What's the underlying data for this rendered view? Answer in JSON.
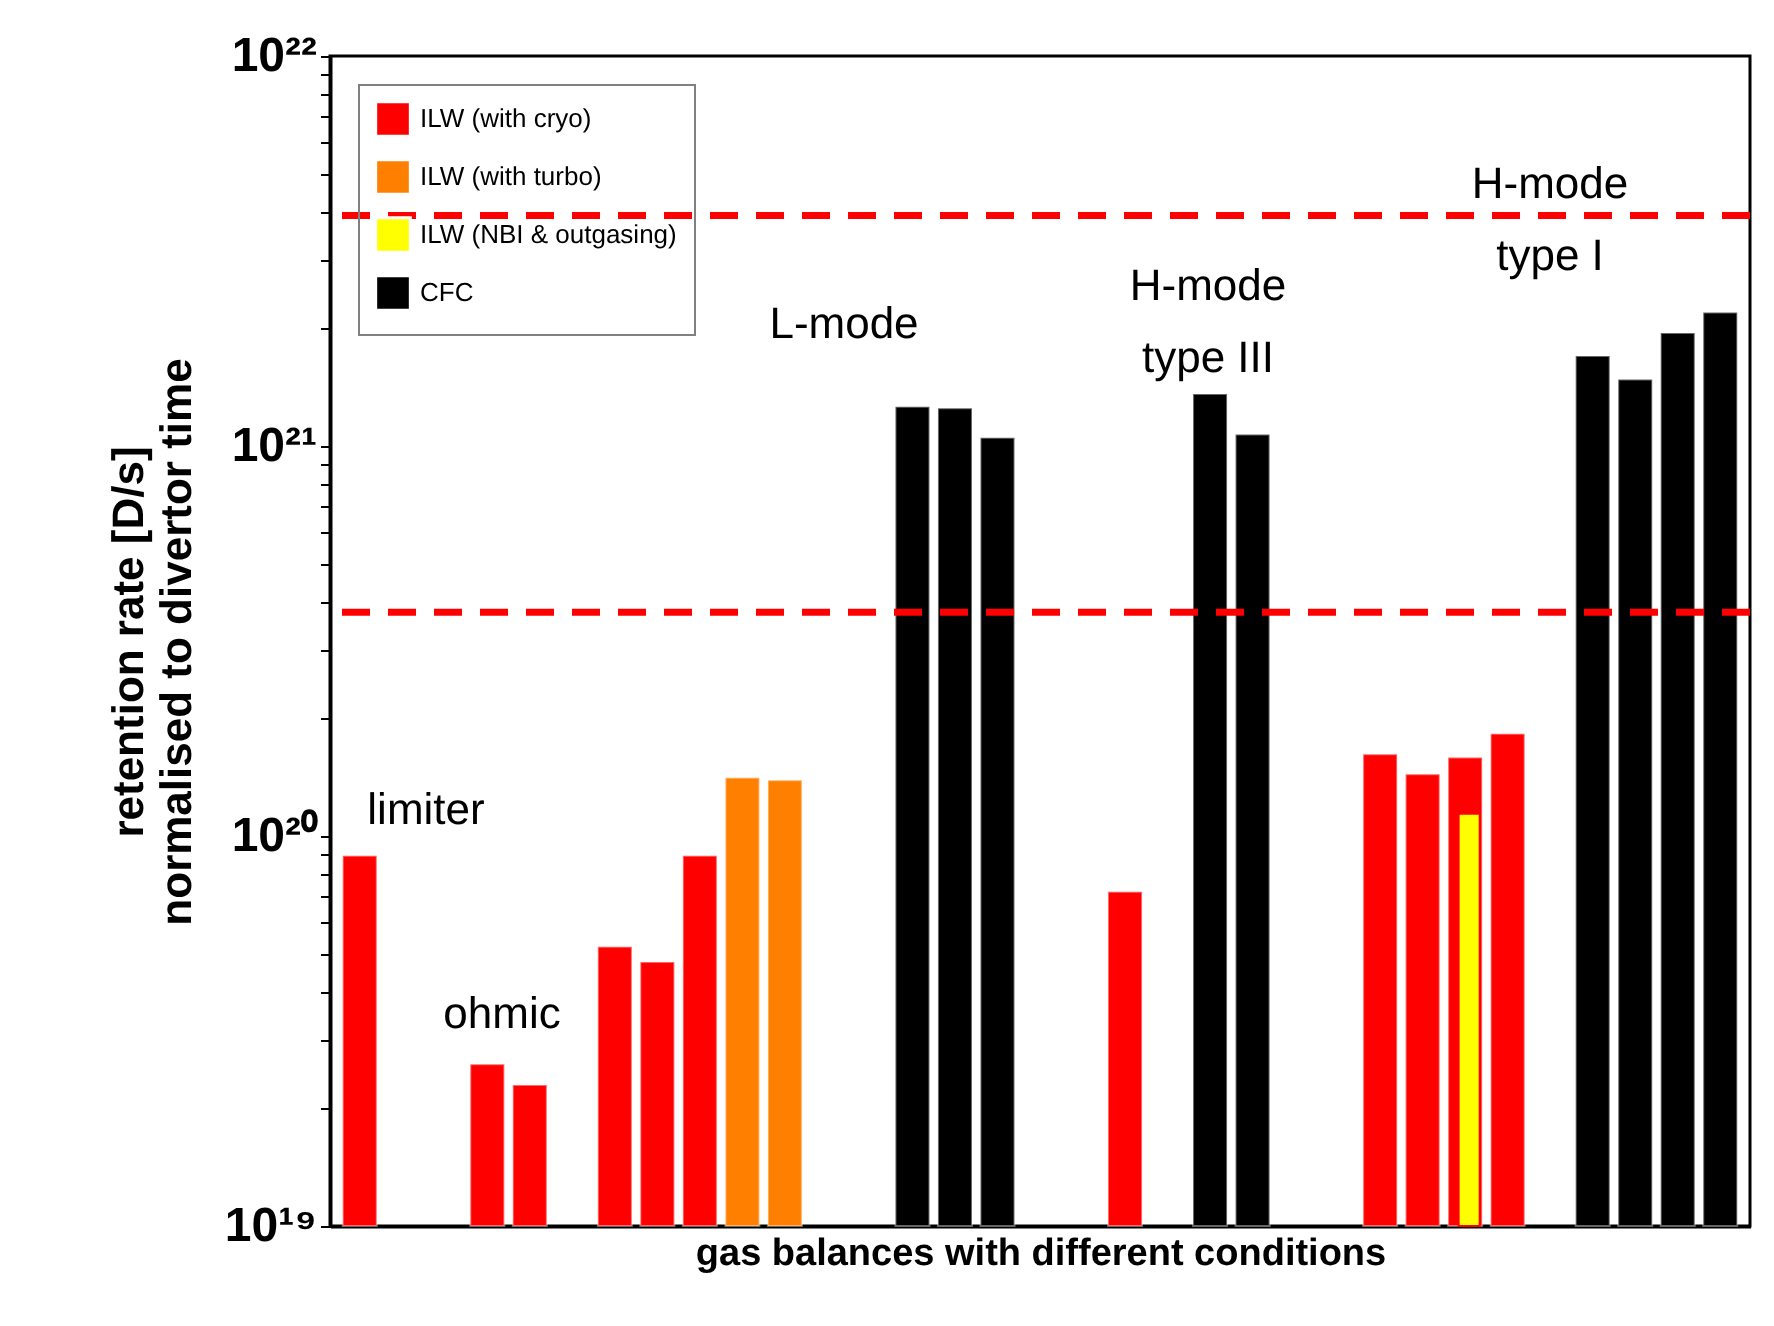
{
  "chart_data": {
    "type": "bar",
    "xlabel": "gas balances with different conditions",
    "ylabel": "retention rate [D/s]\nnormalised to divertor time",
    "categories": [
      null,
      null,
      null,
      null,
      null,
      null,
      null,
      null,
      null,
      null,
      null,
      null,
      null,
      null,
      null,
      null,
      null,
      null,
      null,
      null,
      null,
      null,
      null,
      null,
      null,
      null,
      null,
      null,
      null,
      null,
      null,
      null,
      null
    ],
    "series": [
      {
        "name": "ILW (with cryo)",
        "color": "#ff0000",
        "values": [
          8.9e+19,
          null,
          null,
          2.6e+19,
          2.3e+19,
          null,
          5.2e+19,
          4.75e+19,
          8.9e+19,
          null,
          null,
          null,
          null,
          null,
          null,
          null,
          null,
          null,
          7.2e+19,
          null,
          null,
          null,
          null,
          null,
          1.62e+20,
          1.44e+20,
          1.59e+20,
          1.83e+20,
          null,
          null,
          null,
          null,
          null
        ]
      },
      {
        "name": "ILW (with turbo)",
        "color": "#ff8000",
        "values": [
          null,
          null,
          null,
          null,
          null,
          null,
          null,
          null,
          null,
          1.41e+20,
          1.39e+20,
          null,
          null,
          null,
          null,
          null,
          null,
          null,
          null,
          null,
          null,
          null,
          null,
          null,
          null,
          null,
          null,
          null,
          null,
          null,
          null,
          null,
          null
        ]
      },
      {
        "name": "ILW (NBI & outgasing)",
        "color": "#ffff00",
        "values": [
          null,
          null,
          null,
          null,
          null,
          null,
          null,
          null,
          null,
          null,
          null,
          null,
          null,
          null,
          null,
          null,
          null,
          null,
          null,
          null,
          null,
          null,
          null,
          null,
          null,
          null,
          1.14e+20,
          null,
          null,
          null,
          null,
          null,
          null
        ]
      },
      {
        "name": "CFC",
        "color": "#000000",
        "values": [
          null,
          null,
          null,
          null,
          null,
          null,
          null,
          null,
          null,
          null,
          null,
          null,
          null,
          1.26e+21,
          1.25e+21,
          1.05e+21,
          null,
          null,
          null,
          null,
          1.36e+21,
          1.07e+21,
          null,
          null,
          null,
          null,
          null,
          null,
          null,
          1.7e+21,
          1.48e+21,
          1.95e+21,
          2.2e+21
        ]
      }
    ],
    "log": true,
    "ylim": [
      1e+19,
      1e+22
    ],
    "yticks": [
      {
        "value": 1e+19,
        "label": "10¹⁹"
      },
      {
        "value": 2e+19,
        "label": null
      },
      {
        "value": 3e+19,
        "label": null
      },
      {
        "value": 4e+19,
        "label": null
      },
      {
        "value": 5e+19,
        "label": null
      },
      {
        "value": 6e+19,
        "label": null
      },
      {
        "value": 7e+19,
        "label": null
      },
      {
        "value": 8e+19,
        "label": null
      },
      {
        "value": 9e+19,
        "label": null
      },
      {
        "value": 1e+20,
        "label": "10²⁰"
      },
      {
        "value": 2e+20,
        "label": null
      },
      {
        "value": 3e+20,
        "label": null
      },
      {
        "value": 4e+20,
        "label": null
      },
      {
        "value": 5e+20,
        "label": null
      },
      {
        "value": 6e+20,
        "label": null
      },
      {
        "value": 7e+20,
        "label": null
      },
      {
        "value": 8e+20,
        "label": null
      },
      {
        "value": 9e+20,
        "label": null
      },
      {
        "value": 1e+21,
        "label": "10²¹"
      },
      {
        "value": 2e+21,
        "label": null
      },
      {
        "value": 3e+21,
        "label": null
      },
      {
        "value": 4e+21,
        "label": null
      },
      {
        "value": 5e+21,
        "label": null
      },
      {
        "value": 6e+21,
        "label": null
      },
      {
        "value": 7e+21,
        "label": null
      },
      {
        "value": 8e+21,
        "label": null
      },
      {
        "value": 9e+21,
        "label": null
      },
      {
        "value": 1e+22,
        "label": "10²²"
      }
    ],
    "ref_lines": [
      {
        "axis": "y",
        "value": 3.9e+21,
        "color": "#ff0000",
        "line_style": "dashed"
      },
      {
        "axis": "y",
        "value": 3.75e+20,
        "color": "#ff0000",
        "line_style": "dashed"
      }
    ],
    "annotations": [
      "limiter",
      "ohmic",
      "L-mode",
      "H-mode\ntype III",
      "H-mode\ntype I"
    ],
    "legend": "top left",
    "grid": false
  }
}
